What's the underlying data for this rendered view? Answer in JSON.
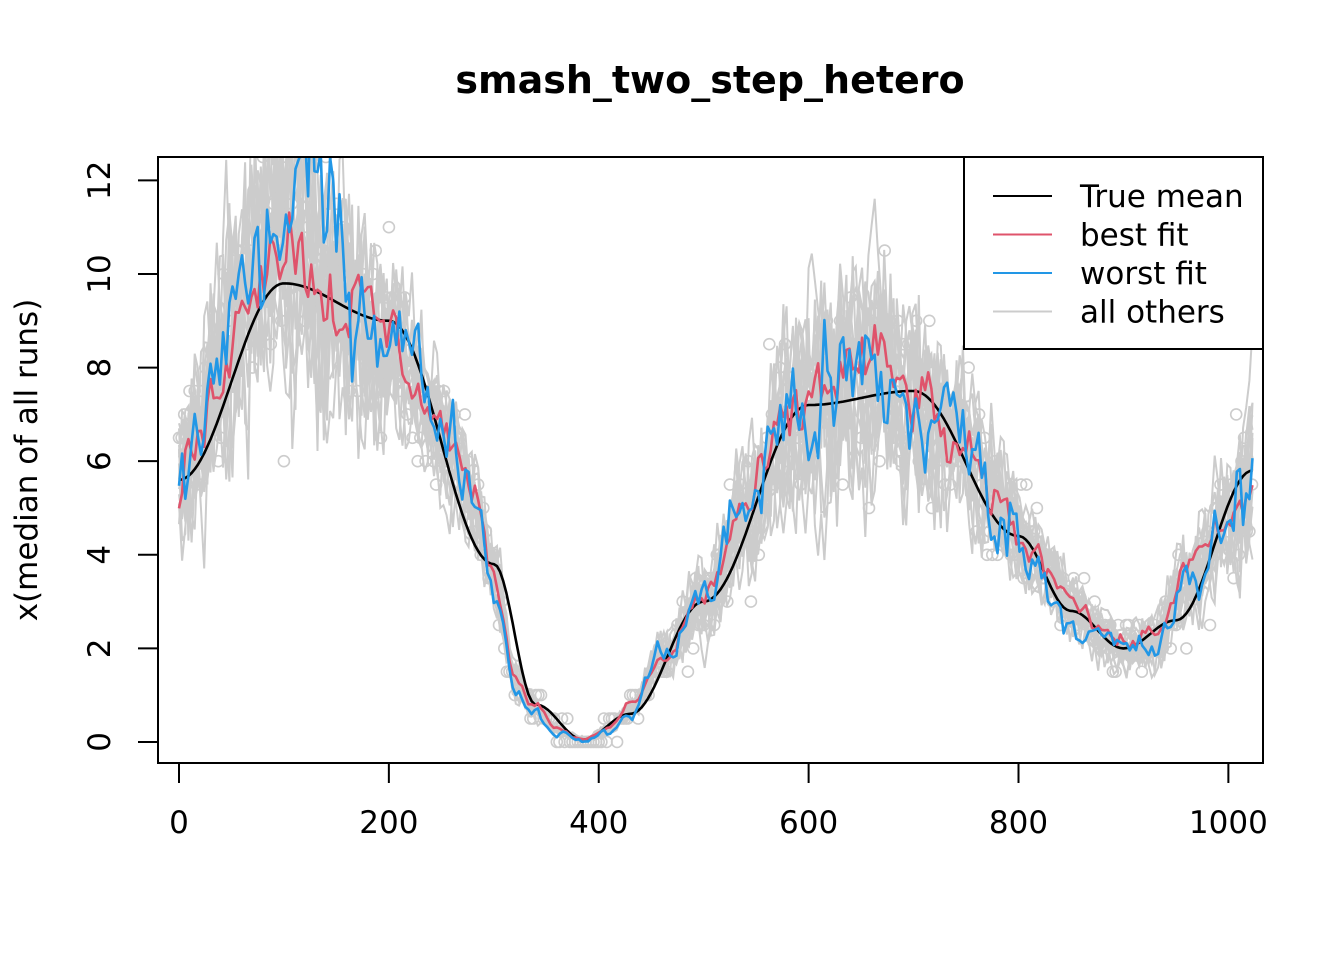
{
  "chart_data": {
    "type": "line",
    "title": "smash_two_step_hetero",
    "xlabel": "",
    "ylabel": "x(median of all runs)",
    "xlim": [
      -20,
      1033
    ],
    "ylim": [
      -0.45,
      12.5
    ],
    "x_ticks": [
      0,
      200,
      400,
      600,
      800,
      1000
    ],
    "x_tick_labels": [
      "0",
      "200",
      "400",
      "600",
      "800",
      "1000"
    ],
    "y_ticks": [
      0,
      2,
      4,
      6,
      8,
      10,
      12
    ],
    "y_tick_labels": [
      "0",
      "2",
      "4",
      "6",
      "8",
      "10",
      "12"
    ],
    "grid": false,
    "legend_position": "top-right",
    "colors": {
      "true_mean": "#000000",
      "best_fit": "#DF536B",
      "worst_fit": "#2297E6",
      "all_others": "#CCCCCC",
      "observations": "#CCCCCC"
    },
    "series": [
      {
        "name": "True mean",
        "key": "true_mean",
        "x": [
          0,
          100,
          200,
          300,
          340,
          385,
          430,
          500,
          600,
          700,
          800,
          850,
          900,
          950,
          1023
        ],
        "values": [
          5.6,
          9.8,
          9.0,
          3.8,
          0.8,
          0.05,
          0.6,
          3.0,
          7.2,
          7.5,
          4.4,
          2.8,
          2.0,
          2.6,
          5.8
        ]
      },
      {
        "name": "best fit",
        "key": "best_fit",
        "x": [
          0,
          20,
          50,
          80,
          100,
          120,
          140,
          160,
          180,
          200,
          220,
          240,
          260,
          280,
          300,
          320,
          340,
          360,
          385,
          410,
          430,
          460,
          500,
          540,
          580,
          620,
          660,
          700,
          740,
          780,
          820,
          850,
          880,
          900,
          930,
          960,
          1000,
          1023
        ],
        "values": [
          5.4,
          6.5,
          8.8,
          10.6,
          10.9,
          10.4,
          9.6,
          9.4,
          9.1,
          8.8,
          7.9,
          7.0,
          6.5,
          5.2,
          3.6,
          1.4,
          0.8,
          0.3,
          0.05,
          0.3,
          0.8,
          1.7,
          3.1,
          5.0,
          6.7,
          7.8,
          8.1,
          7.4,
          6.3,
          5.0,
          3.9,
          3.2,
          2.4,
          2.1,
          2.3,
          3.7,
          4.6,
          5.3
        ]
      },
      {
        "name": "worst fit",
        "key": "worst_fit",
        "x": [
          0,
          20,
          50,
          80,
          100,
          120,
          140,
          160,
          180,
          200,
          220,
          240,
          260,
          280,
          300,
          320,
          340,
          360,
          385,
          410,
          430,
          460,
          500,
          540,
          580,
          620,
          660,
          700,
          740,
          780,
          820,
          850,
          880,
          900,
          930,
          960,
          1000,
          1023
        ],
        "values": [
          5.3,
          6.8,
          9.2,
          10.2,
          11.4,
          11.8,
          11.2,
          10.0,
          9.4,
          9.0,
          8.4,
          7.2,
          6.6,
          5.4,
          3.4,
          1.2,
          0.6,
          0.2,
          0.02,
          0.2,
          0.6,
          1.9,
          3.1,
          5.1,
          7.0,
          7.3,
          7.8,
          7.0,
          6.8,
          5.0,
          3.7,
          2.6,
          2.2,
          1.95,
          2.0,
          3.2,
          4.6,
          6.2
        ]
      }
    ],
    "observations_band": {
      "name": "all others",
      "x": [
        0,
        20,
        50,
        80,
        100,
        120,
        140,
        160,
        180,
        200,
        220,
        240,
        260,
        280,
        300,
        320,
        340,
        360,
        385,
        410,
        430,
        460,
        500,
        540,
        580,
        620,
        660,
        700,
        740,
        780,
        820,
        850,
        880,
        900,
        930,
        960,
        1000,
        1023
      ],
      "center": [
        5.6,
        6.8,
        9.0,
        10.4,
        10.8,
        10.4,
        9.8,
        9.4,
        9.0,
        8.6,
        7.9,
        7.0,
        6.4,
        5.2,
        3.6,
        1.3,
        0.7,
        0.25,
        0.05,
        0.25,
        0.7,
        1.8,
        3.0,
        5.0,
        6.8,
        7.6,
        7.9,
        7.3,
        6.6,
        5.2,
        3.9,
        3.0,
        2.3,
        2.0,
        2.2,
        3.4,
        4.6,
        5.6
      ],
      "spread": [
        1.6,
        1.8,
        2.2,
        2.6,
        2.8,
        2.6,
        2.4,
        2.2,
        1.9,
        1.6,
        1.3,
        1.1,
        1.0,
        0.9,
        0.6,
        0.35,
        0.2,
        0.1,
        0.05,
        0.1,
        0.2,
        0.45,
        0.8,
        1.2,
        1.8,
        2.2,
        2.0,
        1.8,
        1.5,
        1.2,
        0.8,
        0.6,
        0.45,
        0.4,
        0.5,
        0.8,
        1.1,
        1.6
      ]
    },
    "legend": [
      {
        "label": "True mean",
        "color": "#000000"
      },
      {
        "label": "best fit",
        "color": "#DF536B"
      },
      {
        "label": "worst fit",
        "color": "#2297E6"
      },
      {
        "label": "all others",
        "color": "#CCCCCC"
      }
    ]
  }
}
